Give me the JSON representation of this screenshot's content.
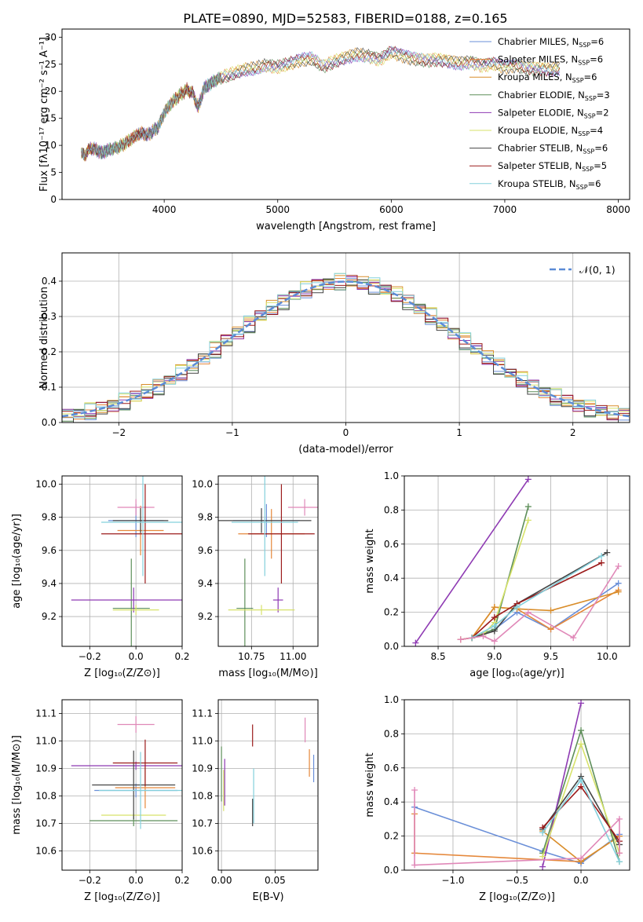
{
  "title": "PLATE=0890, MJD=52583, FIBERID=0188, z=0.165",
  "colors": {
    "chabrier_miles": "#6a8fd8",
    "salpeter_miles": "#e5883b",
    "kroupa_miles": "#d98d2a",
    "chabrier_elodie": "#5e8f5a",
    "salpeter_elodie": "#8e3ab3",
    "kroupa_elodie": "#d7e26a",
    "chabrier_stelib": "#444444",
    "salpeter_stelib": "#9b1b1b",
    "kroupa_stelib": "#83d0dc",
    "pink": "#e088b8",
    "orange": "#e07a20",
    "normal_curve": "#5b8bd6",
    "grid": "#b0b0b0"
  },
  "chart_data": [
    {
      "type": "line",
      "panel": "spectrum",
      "title": "PLATE=0890, MJD=52583, FIBERID=0188, z=0.165",
      "xlabel": "wavelength [Angstrom, rest frame]",
      "ylabel": "Flux [fλ10⁻¹⁷ erg cm⁻² s⁻¹ A⁻¹]",
      "xlim": [
        3100,
        8100
      ],
      "ylim": [
        0,
        31.5
      ],
      "xticks": [
        "4000",
        "5000",
        "6000",
        "7000",
        "8000"
      ],
      "yticks": [
        "0",
        "5",
        "10",
        "15",
        "20",
        "25",
        "30"
      ],
      "legend_position": "right",
      "legend": [
        {
          "label": "Chabrier MILES, N",
          "sub": "SSP",
          "suffix": "=6"
        },
        {
          "label": "Salpeter MILES, N",
          "sub": "SSP",
          "suffix": "=6"
        },
        {
          "label": "Kroupa MILES, N",
          "sub": "SSP",
          "suffix": "=6"
        },
        {
          "label": "Chabrier ELODIE, N",
          "sub": "SSP",
          "suffix": "=3"
        },
        {
          "label": "Salpeter ELODIE, N",
          "sub": "SSP",
          "suffix": "=2"
        },
        {
          "label": "Kroupa ELODIE, N",
          "sub": "SSP",
          "suffix": "=4"
        },
        {
          "label": "Chabrier STELIB, N",
          "sub": "SSP",
          "suffix": "=6"
        },
        {
          "label": "Salpeter STELIB, N",
          "sub": "SSP",
          "suffix": "=5"
        },
        {
          "label": "Kroupa STELIB, N",
          "sub": "SSP",
          "suffix": "=6"
        }
      ],
      "x": [
        3270,
        3300,
        3350,
        3400,
        3450,
        3500,
        3550,
        3600,
        3650,
        3700,
        3750,
        3800,
        3850,
        3900,
        3950,
        4000,
        4050,
        4100,
        4150,
        4200,
        4250,
        4300,
        4350,
        4400,
        4450,
        4500,
        4600,
        4700,
        4800,
        4900,
        5000,
        5100,
        5200,
        5300,
        5400,
        5500,
        5600,
        5700,
        5800,
        5900,
        6000,
        6100,
        6200,
        6300,
        6400,
        6500,
        6600,
        6700,
        6800,
        6900,
        7000,
        7100,
        7200,
        7300,
        7400,
        7500
      ],
      "y": [
        8.5,
        8.2,
        9.5,
        9.2,
        8.6,
        9.1,
        9.4,
        9.7,
        10.3,
        11.0,
        11.8,
        12.3,
        11.9,
        12.6,
        13.5,
        16.0,
        17.5,
        18.6,
        19.5,
        20.3,
        19.7,
        17.0,
        20.5,
        21.3,
        22.0,
        22.5,
        23.2,
        24.0,
        24.2,
        24.8,
        24.5,
        25.0,
        25.8,
        26.0,
        24.6,
        25.5,
        26.3,
        26.8,
        26.5,
        25.9,
        27.2,
        26.6,
        26.0,
        25.7,
        25.9,
        25.6,
        25.2,
        25.4,
        24.8,
        25.1,
        24.5,
        24.8,
        24.1,
        24.3,
        24.0,
        24.3
      ]
    },
    {
      "type": "line",
      "panel": "residuals",
      "xlabel": "(data-model)/error",
      "ylabel": "Normed distribution",
      "xlim": [
        -2.5,
        2.5
      ],
      "ylim": [
        0,
        0.48
      ],
      "xticks": [
        "−2",
        "−1",
        "0",
        "1",
        "2"
      ],
      "yticks": [
        "0.0",
        "0.1",
        "0.2",
        "0.3",
        "0.4"
      ],
      "legend_position": "top-right",
      "legend": [
        {
          "label": "𝒩(0, 1)"
        }
      ],
      "series": [
        {
          "name": "𝒩(0, 1)",
          "function": "normal",
          "mean": 0,
          "sigma": 1
        }
      ],
      "histogram_bins": [
        -2.5,
        -2.4,
        -2.3,
        -2.2,
        -2.1,
        -2.0,
        -1.9,
        -1.8,
        -1.7,
        -1.6,
        -1.5,
        -1.4,
        -1.3,
        -1.2,
        -1.1,
        -1.0,
        -0.9,
        -0.8,
        -0.7,
        -0.6,
        -0.5,
        -0.4,
        -0.3,
        -0.2,
        -0.1,
        0.0,
        0.1,
        0.2,
        0.3,
        0.4,
        0.5,
        0.6,
        0.7,
        0.8,
        0.9,
        1.0,
        1.1,
        1.2,
        1.3,
        1.4,
        1.5,
        1.6,
        1.7,
        1.8,
        1.9,
        2.0,
        2.1,
        2.2,
        2.3,
        2.4
      ]
    },
    {
      "type": "scatter",
      "panel": "age-vs-metallicity",
      "xlabel": "Z [log₁₀(Z/Z⊙)]",
      "ylabel": "age  [log₁₀(age/yr)]",
      "xlim": [
        -0.32,
        0.2
      ],
      "ylim": [
        9.02,
        10.05
      ],
      "xticks": [
        "−0.2",
        "0.0",
        "0.2"
      ],
      "yticks": [
        "9.2",
        "9.4",
        "9.6",
        "9.8",
        "10.0"
      ],
      "points": [
        {
          "x": 0.0,
          "y": 9.78,
          "xerr": 0.12,
          "yerr": 0.2
        },
        {
          "x": 0.02,
          "y": 9.72,
          "xerr": 0.1,
          "yerr": 0.3
        },
        {
          "x": 0.0,
          "y": 9.86,
          "xerr": 0.08,
          "yerr": 0.1
        },
        {
          "x": -0.02,
          "y": 9.25,
          "xerr": 0.08,
          "yerr": 0.6
        },
        {
          "x": -0.01,
          "y": 9.3,
          "xerr": 0.27,
          "yerr": 0.15
        },
        {
          "x": 0.0,
          "y": 9.24,
          "xerr": 0.1,
          "yerr": 0.06
        },
        {
          "x": 0.02,
          "y": 9.78,
          "xerr": 0.12,
          "yerr": 0.15
        },
        {
          "x": 0.04,
          "y": 9.7,
          "xerr": 0.19,
          "yerr": 0.6
        },
        {
          "x": 0.03,
          "y": 9.77,
          "xerr": 0.18,
          "yerr": 0.65
        }
      ]
    },
    {
      "type": "scatter",
      "panel": "age-vs-mass",
      "xlabel": "mass [log₁₀(M/M⊙)]",
      "xlim": [
        10.55,
        11.15
      ],
      "ylim": [
        9.02,
        10.05
      ],
      "xticks": [
        "10.75",
        "11.00"
      ],
      "yticks": [
        "9.2",
        "9.4",
        "9.6",
        "9.8",
        "10.0"
      ],
      "points": [
        {
          "x": 10.84,
          "y": 9.78,
          "xerr": 0.2,
          "yerr": 0.2
        },
        {
          "x": 10.87,
          "y": 9.7,
          "xerr": 0.2,
          "yerr": 0.3
        },
        {
          "x": 11.07,
          "y": 9.86,
          "xerr": 0.1,
          "yerr": 0.1
        },
        {
          "x": 10.71,
          "y": 9.25,
          "xerr": 0.05,
          "yerr": 0.6
        },
        {
          "x": 10.91,
          "y": 9.3,
          "xerr": 0.03,
          "yerr": 0.15
        },
        {
          "x": 10.81,
          "y": 9.24,
          "xerr": 0.2,
          "yerr": 0.06
        },
        {
          "x": 10.81,
          "y": 9.78,
          "xerr": 0.3,
          "yerr": 0.15
        },
        {
          "x": 10.93,
          "y": 9.7,
          "xerr": 0.2,
          "yerr": 0.6
        },
        {
          "x": 10.83,
          "y": 9.77,
          "xerr": 0.2,
          "yerr": 0.65
        }
      ]
    },
    {
      "type": "line",
      "panel": "mass-weight-vs-age",
      "xlabel": "age  [log₁₀(age/yr)]",
      "ylabel": "mass weight",
      "xlim": [
        8.2,
        10.2
      ],
      "ylim": [
        0,
        1.0
      ],
      "xticks": [
        "8.5",
        "9.0",
        "9.5",
        "10.0"
      ],
      "yticks": [
        "0.0",
        "0.2",
        "0.4",
        "0.6",
        "0.8",
        "1.0"
      ],
      "series": [
        {
          "x": [
            8.7,
            8.8,
            9.0,
            9.2,
            9.5,
            10.1
          ],
          "y": [
            0.04,
            0.05,
            0.1,
            0.2,
            0.1,
            0.37
          ]
        },
        {
          "x": [
            8.7,
            8.8,
            9.0,
            9.2,
            9.5,
            10.1
          ],
          "y": [
            0.04,
            0.05,
            0.23,
            0.22,
            0.1,
            0.33
          ]
        },
        {
          "x": [
            8.7,
            8.8,
            9.0,
            9.2,
            9.5,
            10.1
          ],
          "y": [
            0.04,
            0.05,
            0.23,
            0.22,
            0.21,
            0.32
          ]
        },
        {
          "x": [
            8.8,
            9.0,
            9.3
          ],
          "y": [
            0.05,
            0.1,
            0.82
          ]
        },
        {
          "x": [
            8.3,
            9.3
          ],
          "y": [
            0.02,
            0.98
          ]
        },
        {
          "x": [
            8.8,
            8.9,
            9.0,
            9.3
          ],
          "y": [
            0.05,
            0.07,
            0.14,
            0.74
          ]
        },
        {
          "x": [
            8.8,
            9.0,
            9.2,
            10.0
          ],
          "y": [
            0.05,
            0.09,
            0.25,
            0.55
          ]
        },
        {
          "x": [
            8.8,
            9.0,
            9.2,
            9.95
          ],
          "y": [
            0.05,
            0.17,
            0.25,
            0.49
          ]
        },
        {
          "x": [
            8.8,
            9.0,
            9.2,
            9.95
          ],
          "y": [
            0.05,
            0.12,
            0.23,
            0.53
          ]
        },
        {
          "x": [
            8.7,
            8.9,
            9.0,
            9.3,
            9.7,
            10.1
          ],
          "y": [
            0.04,
            0.06,
            0.03,
            0.2,
            0.05,
            0.47
          ]
        }
      ]
    },
    {
      "type": "scatter",
      "panel": "mass-vs-metallicity",
      "xlabel": "Z [log₁₀(Z/Z⊙)]",
      "ylabel": "mass [log₁₀(M/M⊙)]",
      "xlim": [
        -0.32,
        0.2
      ],
      "ylim": [
        10.53,
        11.15
      ],
      "xticks": [
        "−0.2",
        "0.0",
        "0.2"
      ],
      "yticks": [
        "10.6",
        "10.7",
        "10.8",
        "10.9",
        "11.0",
        "11.1"
      ],
      "points": [
        {
          "x": 0.0,
          "y": 10.82,
          "xerr": 0.18,
          "yerr": 0.05
        },
        {
          "x": 0.04,
          "y": 10.83,
          "xerr": 0.13,
          "yerr": 0.15
        },
        {
          "x": 0.0,
          "y": 11.06,
          "xerr": 0.08,
          "yerr": 0.06
        },
        {
          "x": -0.01,
          "y": 10.71,
          "xerr": 0.19,
          "yerr": 0.04
        },
        {
          "x": 0.0,
          "y": 10.91,
          "xerr": 0.28,
          "yerr": 0.03
        },
        {
          "x": -0.01,
          "y": 10.73,
          "xerr": 0.14,
          "yerr": 0.01
        },
        {
          "x": -0.01,
          "y": 10.84,
          "xerr": 0.18,
          "yerr": 0.25
        },
        {
          "x": 0.04,
          "y": 10.92,
          "xerr": 0.14,
          "yerr": 0.17
        },
        {
          "x": 0.02,
          "y": 10.82,
          "xerr": 0.18,
          "yerr": 0.28
        }
      ]
    },
    {
      "type": "scatter",
      "panel": "mass-vs-extinction",
      "xlabel": "E(B-V)",
      "xlim": [
        -0.003,
        0.09
      ],
      "ylim": [
        10.53,
        11.15
      ],
      "xticks": [
        "0.00",
        "0.05"
      ],
      "yticks": [
        "10.6",
        "10.7",
        "10.8",
        "10.9",
        "11.0",
        "11.1"
      ],
      "points": [
        {
          "x": 0.086,
          "y": 10.9,
          "xerr": 0.0,
          "yerr": 0.1
        },
        {
          "x": 0.082,
          "y": 10.92,
          "xerr": 0.0,
          "yerr": 0.1
        },
        {
          "x": 0.078,
          "y": 11.04,
          "xerr": 0.0,
          "yerr": 0.09
        },
        {
          "x": 0.0,
          "y": 10.88,
          "xerr": 0.0,
          "yerr": 0.2
        },
        {
          "x": 0.003,
          "y": 10.85,
          "xerr": 0.0,
          "yerr": 0.17
        },
        {
          "x": 0.002,
          "y": 10.82,
          "xerr": 0.0,
          "yerr": 0.15
        },
        {
          "x": 0.029,
          "y": 10.74,
          "xerr": 0.0,
          "yerr": 0.1
        },
        {
          "x": 0.029,
          "y": 11.02,
          "xerr": 0.0,
          "yerr": 0.08
        },
        {
          "x": 0.03,
          "y": 10.8,
          "xerr": 0.0,
          "yerr": 0.2
        }
      ]
    },
    {
      "type": "line",
      "panel": "mass-weight-vs-metallicity",
      "xlabel": "Z [log₁₀(Z/Z⊙)]",
      "ylabel": "mass weight",
      "xlim": [
        -1.38,
        0.38
      ],
      "ylim": [
        0,
        1.0
      ],
      "xticks": [
        "−1.0",
        "−0.5",
        "0.0"
      ],
      "yticks": [
        "0.0",
        "0.2",
        "0.4",
        "0.6",
        "0.8",
        "1.0"
      ],
      "series": [
        {
          "x": [
            -1.3,
            -0.3,
            0.0,
            0.3
          ],
          "y": [
            0.37,
            0.11,
            0.04,
            0.21
          ]
        },
        {
          "x": [
            -1.3,
            -1.3,
            0.0,
            0.3,
            0.3
          ],
          "y": [
            0.33,
            0.1,
            0.05,
            0.2,
            0.1
          ]
        },
        {
          "x": [
            -0.3,
            0.0,
            0.3
          ],
          "y": [
            0.23,
            0.05,
            0.2
          ]
        },
        {
          "x": [
            -0.3,
            0.0,
            0.3
          ],
          "y": [
            0.1,
            0.82,
            0.05
          ]
        },
        {
          "x": [
            -0.3,
            0.0
          ],
          "y": [
            0.02,
            0.98
          ]
        },
        {
          "x": [
            -0.3,
            0.0,
            0.3
          ],
          "y": [
            0.08,
            0.74,
            0.1
          ]
        },
        {
          "x": [
            -0.3,
            0.0,
            0.3
          ],
          "y": [
            0.24,
            0.55,
            0.15
          ]
        },
        {
          "x": [
            -0.3,
            0.0,
            0.3
          ],
          "y": [
            0.25,
            0.49,
            0.17
          ]
        },
        {
          "x": [
            -0.3,
            0.0,
            0.3
          ],
          "y": [
            0.22,
            0.53,
            0.05
          ]
        },
        {
          "x": [
            -1.3,
            -1.3,
            0.0,
            0.3,
            0.3
          ],
          "y": [
            0.47,
            0.03,
            0.07,
            0.3,
            0.1
          ]
        }
      ]
    }
  ]
}
